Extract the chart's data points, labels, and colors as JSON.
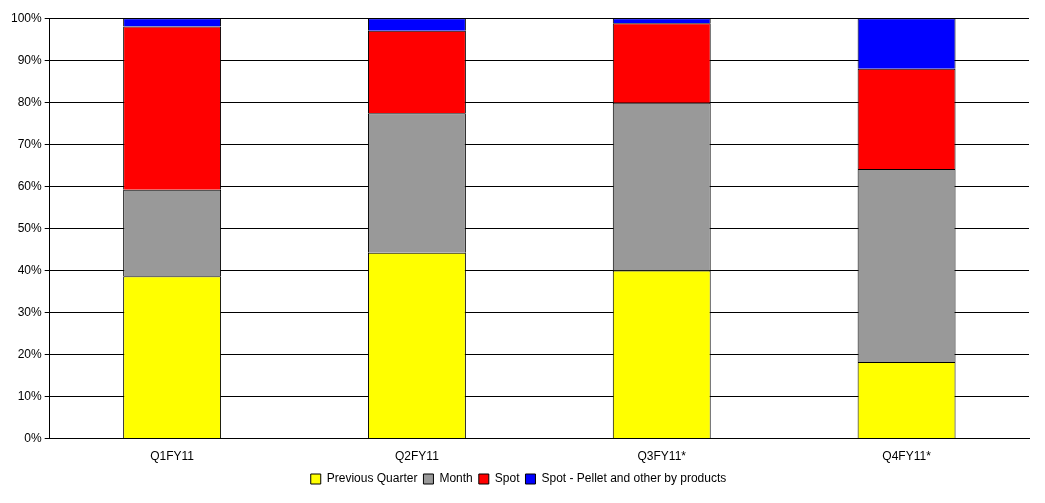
{
  "chart_data": {
    "type": "bar",
    "stacked": true,
    "categories": [
      "Q1FY11",
      "Q2FY11",
      "Q3FY11*",
      "Q4FY11*"
    ],
    "series": [
      {
        "name": "Previous Quarter",
        "color": "#ffff00",
        "values": [
          38.6,
          44.2,
          40.0,
          18.2
        ]
      },
      {
        "name": "Month",
        "color": "#999999",
        "values": [
          20.6,
          33.2,
          39.9,
          45.9
        ]
      },
      {
        "name": "Spot",
        "color": "#ff0000",
        "values": [
          38.8,
          19.6,
          18.9,
          23.9
        ]
      },
      {
        "name": "Spot - Pellet and other by products",
        "color": "#0000ff",
        "values": [
          2.0,
          3.0,
          1.2,
          12.0
        ]
      }
    ],
    "ylim": [
      0,
      100
    ],
    "yticks": [
      {
        "value": 0,
        "label": "0%"
      },
      {
        "value": 10,
        "label": "10%"
      },
      {
        "value": 20,
        "label": "20%"
      },
      {
        "value": 30,
        "label": "30%"
      },
      {
        "value": 40,
        "label": "40%"
      },
      {
        "value": 50,
        "label": "50%"
      },
      {
        "value": 60,
        "label": "60%"
      },
      {
        "value": 70,
        "label": "70%"
      },
      {
        "value": 80,
        "label": "80%"
      },
      {
        "value": 90,
        "label": "90%"
      },
      {
        "value": 100,
        "label": "100%"
      }
    ],
    "grid": "y",
    "legend": "bottom"
  }
}
